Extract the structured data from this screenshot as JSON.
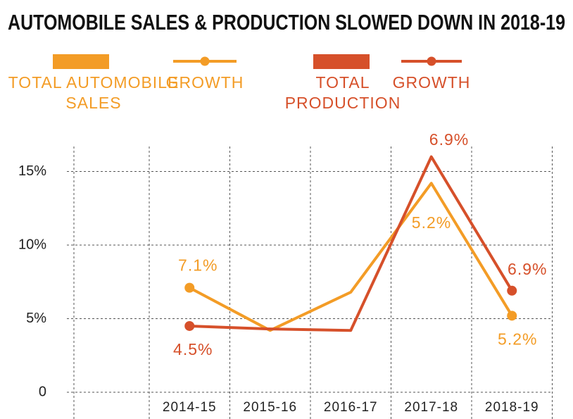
{
  "chart_data": {
    "type": "line",
    "title": "AUTOMOBILE SALES & PRODUCTION SLOWED DOWN IN 2018-19",
    "legend_bars": [
      {
        "name": "TOTAL AUTOMOBILE SALES",
        "color": "#f39c26"
      },
      {
        "name": "TOTAL PRODUCTION",
        "color": "#d6502a"
      }
    ],
    "categories": [
      "2014-15",
      "2015-16",
      "2016-17",
      "2017-18",
      "2018-19"
    ],
    "series": [
      {
        "name": "GROWTH",
        "color": "#f39c26",
        "values": [
          7.1,
          4.2,
          6.8,
          14.2,
          5.2
        ],
        "value_labels": [
          "7.1%",
          null,
          null,
          null,
          "5.2%"
        ]
      },
      {
        "name": "GROWTH",
        "color": "#d6502a",
        "values": [
          4.5,
          4.3,
          4.2,
          16.0,
          6.9
        ],
        "value_labels": [
          "4.5%",
          null,
          null,
          null,
          "6.9%"
        ]
      }
    ],
    "annotations": [
      {
        "text": "5.2%",
        "color": "#f39c26"
      },
      {
        "text": "6.9%",
        "color": "#d6502a"
      }
    ],
    "ylim": [
      0,
      16.7
    ],
    "yticks": [
      0,
      {
        "value": 5,
        "label": "5%"
      },
      {
        "value": 10,
        "label": "10%"
      },
      {
        "value": 15,
        "label": "15%"
      }
    ],
    "grid": true
  }
}
